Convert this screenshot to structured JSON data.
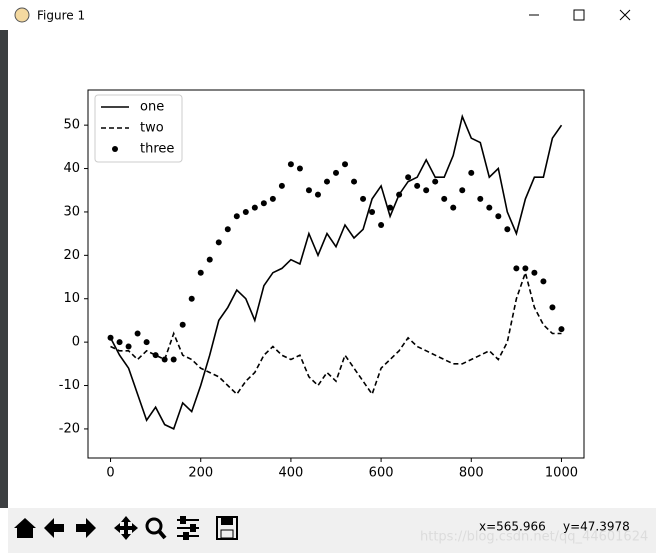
{
  "window": {
    "title": "Figure 1"
  },
  "chart_data": {
    "type": "line",
    "x": [
      0,
      20,
      40,
      60,
      80,
      100,
      120,
      140,
      160,
      180,
      200,
      220,
      240,
      260,
      280,
      300,
      320,
      340,
      360,
      380,
      400,
      420,
      440,
      460,
      480,
      500,
      520,
      540,
      560,
      580,
      600,
      620,
      640,
      660,
      680,
      700,
      720,
      740,
      760,
      780,
      800,
      820,
      840,
      860,
      880,
      900,
      920,
      940,
      960,
      980,
      1000
    ],
    "series": [
      {
        "name": "one",
        "color": "#000000",
        "linestyle": "solid",
        "values": [
          1,
          -3,
          -6,
          -12,
          -18,
          -15,
          -19,
          -20,
          -14,
          -16,
          -10,
          -3,
          5,
          8,
          12,
          10,
          5,
          13,
          16,
          17,
          19,
          18,
          25,
          20,
          25,
          22,
          27,
          24,
          26,
          33,
          36,
          29,
          34,
          37,
          38,
          42,
          38,
          38,
          43,
          52,
          47,
          46,
          38,
          40,
          30,
          25,
          33,
          38,
          38,
          47,
          50
        ]
      },
      {
        "name": "two",
        "color": "#000000",
        "linestyle": "dashed",
        "values": [
          -1,
          -2,
          -2,
          -4,
          -2,
          -3,
          -4,
          2,
          -3,
          -4,
          -6,
          -7,
          -8,
          -10,
          -12,
          -9,
          -7,
          -3,
          -1,
          -3,
          -4,
          -3,
          -8,
          -10,
          -7,
          -9,
          -3,
          -6,
          -9,
          -12,
          -6,
          -4,
          -2,
          1,
          -1,
          -2,
          -3,
          -4,
          -5,
          -5,
          -4,
          -3,
          -2,
          -4,
          0,
          10,
          16,
          8,
          4,
          2,
          2
        ]
      },
      {
        "name": "three",
        "color": "#000000",
        "linestyle": "dots",
        "values": [
          1,
          0,
          -1,
          2,
          0,
          -3,
          -4,
          -4,
          4,
          10,
          16,
          19,
          23,
          26,
          29,
          30,
          31,
          32,
          33,
          36,
          41,
          40,
          35,
          34,
          37,
          39,
          41,
          37,
          33,
          30,
          27,
          31,
          34,
          38,
          36,
          35,
          37,
          33,
          31,
          35,
          39,
          33,
          31,
          29,
          26,
          17,
          17,
          16,
          14,
          8,
          3
        ]
      }
    ],
    "xlim": [
      -50,
      1050
    ],
    "ylim": [
      -26.7,
      58.1
    ],
    "xticks": [
      0,
      200,
      400,
      600,
      800,
      1000
    ],
    "yticks": [
      -20,
      -10,
      0,
      10,
      20,
      30,
      40,
      50
    ],
    "legend": "upper left"
  },
  "toolbar": {
    "x_readout": "x=565.966",
    "y_readout": "y=47.3978",
    "watermark": "https://blog.csdn.net/qq_44601624"
  }
}
